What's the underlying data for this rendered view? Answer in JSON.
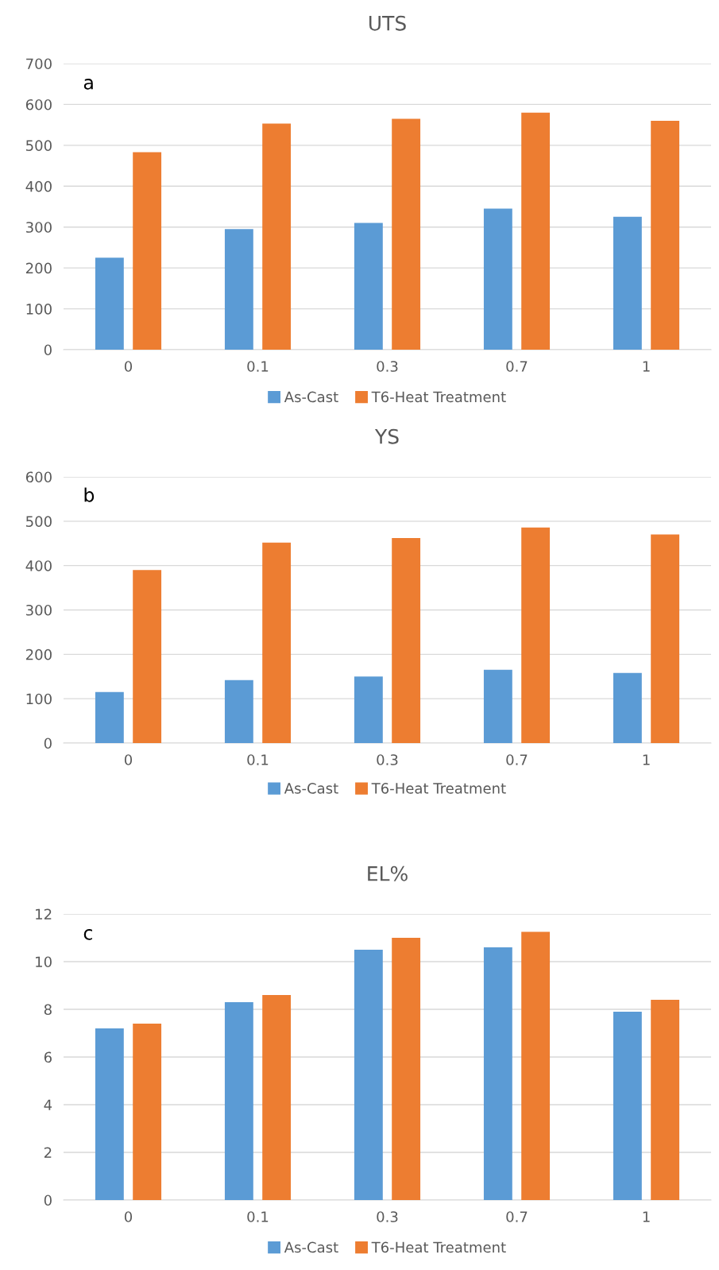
{
  "chart_data": [
    {
      "type": "bar",
      "title": "UTS",
      "categories": [
        "0",
        "0.1",
        "0.3",
        "0.7",
        "1"
      ],
      "series": [
        {
          "name": "As-Cast",
          "color": "#5b9bd5",
          "values": [
            225,
            295,
            310,
            345,
            325
          ]
        },
        {
          "name": "T6-Heat Treatment",
          "color": "#ed7d31",
          "values": [
            483,
            553,
            565,
            580,
            560
          ]
        }
      ],
      "ylim": [
        0,
        700
      ],
      "yticks": [
        0,
        100,
        200,
        300,
        400,
        500,
        600,
        700
      ],
      "grid": "y",
      "legend": "bottom",
      "annotations": [
        "a"
      ]
    },
    {
      "type": "bar",
      "title": "YS",
      "categories": [
        "0",
        "0.1",
        "0.3",
        "0.7",
        "1"
      ],
      "series": [
        {
          "name": "As-Cast",
          "color": "#5b9bd5",
          "values": [
            115,
            142,
            150,
            165,
            158
          ]
        },
        {
          "name": "T6-Heat Treatment",
          "color": "#ed7d31",
          "values": [
            390,
            452,
            462,
            486,
            470
          ]
        }
      ],
      "ylim": [
        0,
        600
      ],
      "yticks": [
        0,
        100,
        200,
        300,
        400,
        500,
        600
      ],
      "grid": "y",
      "legend": "bottom",
      "annotations": [
        "b"
      ]
    },
    {
      "type": "bar",
      "title": "EL%",
      "categories": [
        "0",
        "0.1",
        "0.3",
        "0.7",
        "1"
      ],
      "series": [
        {
          "name": "As-Cast",
          "color": "#5b9bd5",
          "values": [
            7.2,
            8.3,
            10.5,
            10.6,
            7.9
          ]
        },
        {
          "name": "T6-Heat Treatment",
          "color": "#ed7d31",
          "values": [
            7.4,
            8.6,
            11.0,
            11.25,
            8.4
          ]
        }
      ],
      "ylim": [
        0,
        12
      ],
      "yticks": [
        0,
        2,
        4,
        6,
        8,
        10,
        12
      ],
      "grid": "y",
      "legend": "bottom",
      "annotations": [
        "c"
      ]
    }
  ]
}
